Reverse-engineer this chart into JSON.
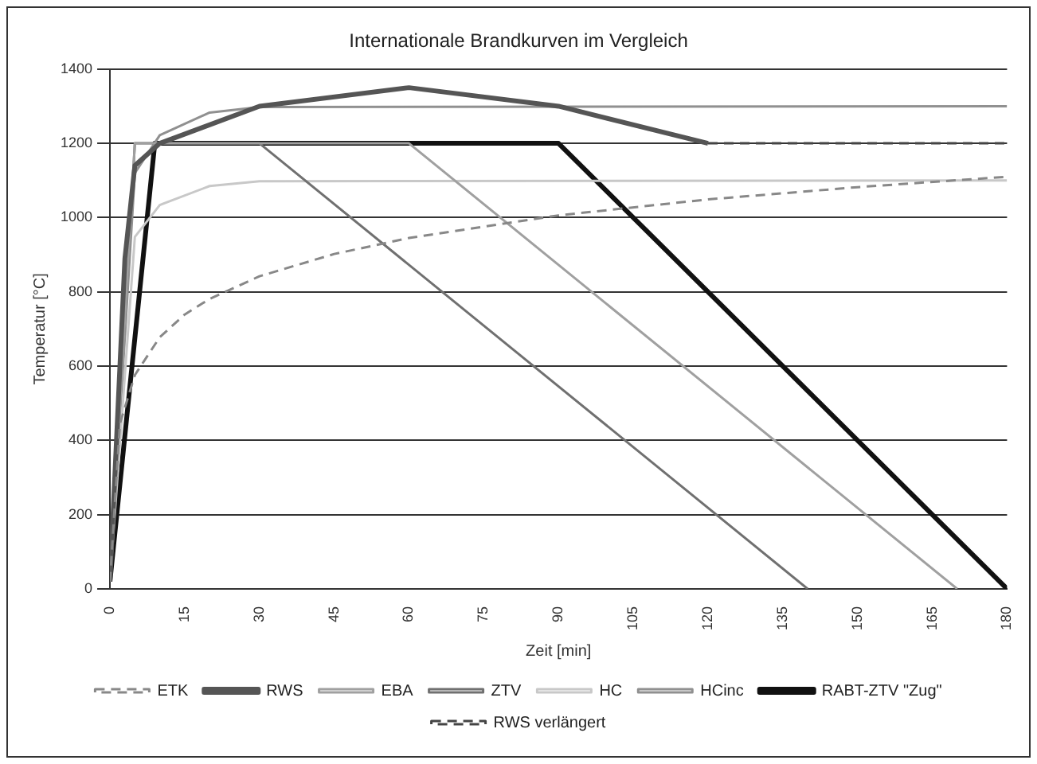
{
  "chart_data": {
    "type": "line",
    "title": "Internationale Brandkurven im Vergleich",
    "xlabel": "Zeit [min]",
    "ylabel": "Temperatur [°C]",
    "xlim": [
      0,
      180
    ],
    "xticks": [
      0,
      15,
      30,
      45,
      60,
      75,
      90,
      105,
      120,
      135,
      150,
      165,
      180
    ],
    "ylim": [
      0,
      1400
    ],
    "yticks": [
      0,
      200,
      400,
      600,
      800,
      1000,
      1200,
      1400
    ],
    "grid": "y",
    "legend": "bottom",
    "marker": "none",
    "series": [
      {
        "name": "ETK",
        "color": "#888888",
        "line_style": "dashed",
        "x": [
          0,
          2,
          5,
          10,
          15,
          20,
          30,
          45,
          60,
          90,
          120,
          150,
          180
        ],
        "values": [
          20,
          445,
          576,
          678,
          739,
          781,
          842,
          902,
          945,
          1006,
          1049,
          1082,
          1110
        ]
      },
      {
        "name": "RWS",
        "color": "#555555",
        "x": [
          0,
          3,
          5,
          10,
          30,
          60,
          90,
          120
        ],
        "values": [
          20,
          890,
          1140,
          1200,
          1300,
          1350,
          1300,
          1200
        ]
      },
      {
        "name": "EBA",
        "color": "#a0a0a0",
        "x": [
          0,
          5,
          60,
          170
        ],
        "values": [
          20,
          1200,
          1200,
          0
        ]
      },
      {
        "name": "ZTV",
        "color": "#707070",
        "x": [
          0,
          5,
          30,
          140
        ],
        "values": [
          20,
          1200,
          1200,
          0
        ]
      },
      {
        "name": "HC",
        "color": "#c8c8c8",
        "x": [
          0,
          5,
          10,
          20,
          30,
          180
        ],
        "values": [
          20,
          948,
          1034,
          1085,
          1098,
          1100
        ]
      },
      {
        "name": "HCinc",
        "color": "#909090",
        "x": [
          0,
          5,
          10,
          20,
          30,
          180
        ],
        "values": [
          20,
          1120,
          1222,
          1283,
          1298,
          1300
        ]
      },
      {
        "name": "RABT-ZTV \"Zug\"",
        "color": "#111111",
        "x": [
          0,
          9,
          90,
          180
        ],
        "values": [
          20,
          1200,
          1200,
          0
        ]
      },
      {
        "name": "RWS verlängert",
        "color": "#444444",
        "line_style": "dashed",
        "x": [
          120,
          180
        ],
        "values": [
          1200,
          1200
        ]
      }
    ]
  }
}
